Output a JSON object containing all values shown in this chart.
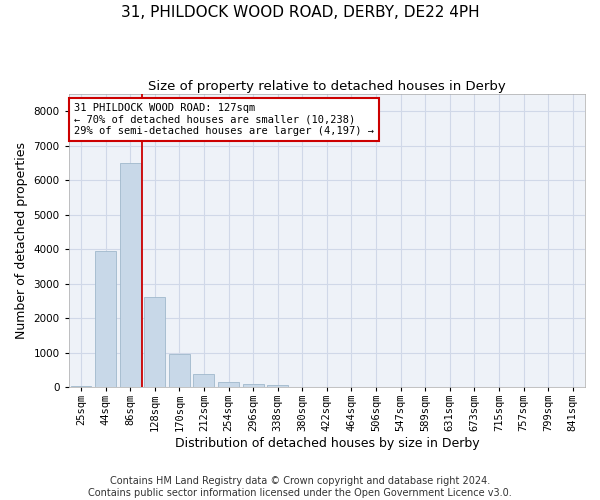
{
  "title1": "31, PHILDOCK WOOD ROAD, DERBY, DE22 4PH",
  "title2": "Size of property relative to detached houses in Derby",
  "xlabel": "Distribution of detached houses by size in Derby",
  "ylabel": "Number of detached properties",
  "categories": [
    "25sqm",
    "44sqm",
    "86sqm",
    "128sqm",
    "170sqm",
    "212sqm",
    "254sqm",
    "296sqm",
    "338sqm",
    "380sqm",
    "422sqm",
    "464sqm",
    "506sqm",
    "547sqm",
    "589sqm",
    "631sqm",
    "673sqm",
    "715sqm",
    "757sqm",
    "799sqm",
    "841sqm"
  ],
  "values": [
    30,
    3950,
    6500,
    2600,
    950,
    380,
    150,
    100,
    60,
    0,
    0,
    0,
    0,
    0,
    0,
    0,
    0,
    0,
    0,
    0,
    0
  ],
  "bar_color": "#c8d8e8",
  "bar_edge_color": "#a0b8cc",
  "vline_color": "#cc0000",
  "annotation_text": "31 PHILDOCK WOOD ROAD: 127sqm\n← 70% of detached houses are smaller (10,238)\n29% of semi-detached houses are larger (4,197) →",
  "annotation_box_color": "#ffffff",
  "annotation_box_edge": "#cc0000",
  "ylim": [
    0,
    8500
  ],
  "yticks": [
    0,
    1000,
    2000,
    3000,
    4000,
    5000,
    6000,
    7000,
    8000
  ],
  "grid_color": "#d0d8e8",
  "background_color": "#eef2f8",
  "footer1": "Contains HM Land Registry data © Crown copyright and database right 2024.",
  "footer2": "Contains public sector information licensed under the Open Government Licence v3.0.",
  "title1_fontsize": 11,
  "title2_fontsize": 9.5,
  "axis_label_fontsize": 9,
  "tick_fontsize": 7.5,
  "annotation_fontsize": 7.5,
  "footer_fontsize": 7
}
